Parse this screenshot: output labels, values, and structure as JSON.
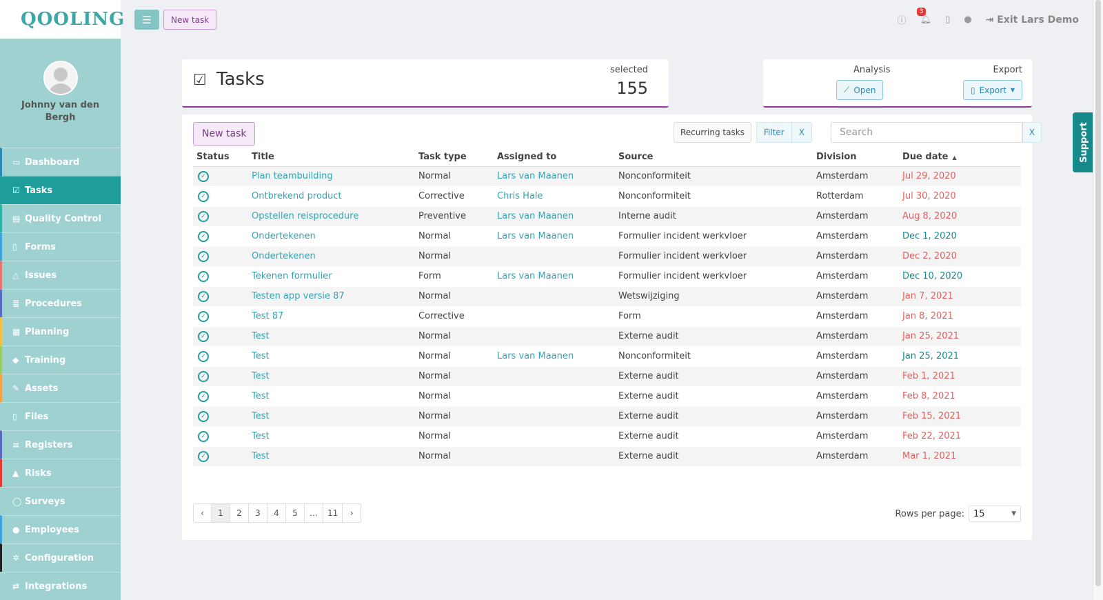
{
  "app": {
    "logo_text": "QOOLING"
  },
  "user": {
    "name": "Johnny van den Bergh"
  },
  "sidebar": {
    "items": [
      {
        "label": "Dashboard",
        "icon": "monitor-icon",
        "glyph": "▭",
        "accent": "#2b8ab0",
        "active": false
      },
      {
        "label": "Tasks",
        "icon": "check-square-icon",
        "glyph": "☑",
        "accent": "#1f9d9d",
        "active": true
      },
      {
        "label": "Quality Control",
        "icon": "book-icon",
        "glyph": "▤",
        "accent": "#2bb0a0",
        "active": false
      },
      {
        "label": "Forms",
        "icon": "file-icon",
        "glyph": "▯",
        "accent": "#3aa3d8",
        "active": false
      },
      {
        "label": "Issues",
        "icon": "bell-icon",
        "glyph": "△",
        "accent": "#e57373",
        "active": false
      },
      {
        "label": "Procedures",
        "icon": "list-icon",
        "glyph": "≣",
        "accent": "#5c6bc0",
        "active": false
      },
      {
        "label": "Planning",
        "icon": "calendar-icon",
        "glyph": "▦",
        "accent": "#f0c040",
        "active": false
      },
      {
        "label": "Training",
        "icon": "graduation-cap-icon",
        "glyph": "◆",
        "accent": "#9ccc65",
        "active": false
      },
      {
        "label": "Assets",
        "icon": "wrench-icon",
        "glyph": "✎",
        "accent": "#f4a340",
        "active": false
      },
      {
        "label": "Files",
        "icon": "document-icon",
        "glyph": "▯",
        "accent": "#9fd1d1",
        "active": false
      },
      {
        "label": "Registers",
        "icon": "bars-icon",
        "glyph": "≡",
        "accent": "#5c6bc0",
        "active": false
      },
      {
        "label": "Risks",
        "icon": "warning-icon",
        "glyph": "▲",
        "accent": "#e53935",
        "active": false
      },
      {
        "label": "Surveys",
        "icon": "comment-icon",
        "glyph": "◯",
        "accent": "#9fd1d1",
        "active": false
      },
      {
        "label": "Employees",
        "icon": "users-icon",
        "glyph": "●",
        "accent": "#3aa3d8",
        "active": false
      },
      {
        "label": "Configuration",
        "icon": "gear-icon",
        "glyph": "✲",
        "accent": "#222222",
        "active": false
      },
      {
        "label": "Integrations",
        "icon": "exchange-icon",
        "glyph": "⇄",
        "accent": "#9fd1d1",
        "active": false
      }
    ]
  },
  "topbar": {
    "new_task_label": "New task",
    "notifications_count": "3",
    "exit_label": "Exit Lars Demo"
  },
  "header": {
    "title": "Tasks",
    "selected_label": "selected",
    "selected_count": "155",
    "analysis_label": "Analysis",
    "analysis_button": "Open",
    "export_label": "Export",
    "export_button": "Export"
  },
  "toolbar": {
    "new_task_label": "New task",
    "recurring_label": "Recurring tasks",
    "filter_label": "Filter",
    "filter_clear": "X",
    "search_placeholder": "Search",
    "search_clear": "X"
  },
  "table": {
    "columns": [
      "Status",
      "Title",
      "Task type",
      "Assigned to",
      "Source",
      "Division",
      "Due date"
    ],
    "rows": [
      {
        "title": "Plan teambuilding",
        "type": "Normal",
        "assigned": "Lars van Maanen",
        "source": "Nonconformiteit",
        "division": "Amsterdam",
        "due": "Jul 29, 2020",
        "overdue": true
      },
      {
        "title": "Ontbrekend product",
        "type": "Corrective",
        "assigned": "Chris Hale",
        "source": "Nonconformiteit",
        "division": "Rotterdam",
        "due": "Jul 30, 2020",
        "overdue": true
      },
      {
        "title": "Opstellen reisprocedure",
        "type": "Preventive",
        "assigned": "Lars van Maanen",
        "source": "Interne audit",
        "division": "Amsterdam",
        "due": "Aug 8, 2020",
        "overdue": true
      },
      {
        "title": "Ondertekenen",
        "type": "Normal",
        "assigned": "Lars van Maanen",
        "source": "Formulier incident werkvloer",
        "division": "Amsterdam",
        "due": "Dec 1, 2020",
        "overdue": false
      },
      {
        "title": "Ondertekenen",
        "type": "Normal",
        "assigned": "",
        "source": "Formulier incident werkvloer",
        "division": "Amsterdam",
        "due": "Dec 2, 2020",
        "overdue": true
      },
      {
        "title": "Tekenen formulier",
        "type": "Form",
        "assigned": "Lars van Maanen",
        "source": "Formulier incident werkvloer",
        "division": "Amsterdam",
        "due": "Dec 10, 2020",
        "overdue": false
      },
      {
        "title": "Testen app versie 87",
        "type": "Normal",
        "assigned": "",
        "source": "Wetswijziging",
        "division": "Amsterdam",
        "due": "Jan 7, 2021",
        "overdue": true
      },
      {
        "title": "Test 87",
        "type": "Corrective",
        "assigned": "",
        "source": "Form",
        "division": "Amsterdam",
        "due": "Jan 8, 2021",
        "overdue": true
      },
      {
        "title": "Test",
        "type": "Normal",
        "assigned": "",
        "source": "Externe audit",
        "division": "Amsterdam",
        "due": "Jan 25, 2021",
        "overdue": true
      },
      {
        "title": "Test",
        "type": "Normal",
        "assigned": "Lars van Maanen",
        "source": "Nonconformiteit",
        "division": "Amsterdam",
        "due": "Jan 25, 2021",
        "overdue": false
      },
      {
        "title": "Test",
        "type": "Normal",
        "assigned": "",
        "source": "Externe audit",
        "division": "Amsterdam",
        "due": "Feb 1, 2021",
        "overdue": true
      },
      {
        "title": "Test",
        "type": "Normal",
        "assigned": "",
        "source": "Externe audit",
        "division": "Amsterdam",
        "due": "Feb 8, 2021",
        "overdue": true
      },
      {
        "title": "Test",
        "type": "Normal",
        "assigned": "",
        "source": "Externe audit",
        "division": "Amsterdam",
        "due": "Feb 15, 2021",
        "overdue": true
      },
      {
        "title": "Test",
        "type": "Normal",
        "assigned": "",
        "source": "Externe audit",
        "division": "Amsterdam",
        "due": "Feb 22, 2021",
        "overdue": true
      },
      {
        "title": "Test",
        "type": "Normal",
        "assigned": "",
        "source": "Externe audit",
        "division": "Amsterdam",
        "due": "Mar 1, 2021",
        "overdue": true
      }
    ]
  },
  "pagination": {
    "prev": "‹",
    "pages": [
      "1",
      "2",
      "3",
      "4",
      "5",
      "…",
      "11"
    ],
    "current": "1",
    "next": "›",
    "rows_per_page_label": "Rows per page:",
    "rows_per_page_value": "15"
  },
  "support": {
    "label": "Support"
  },
  "colors": {
    "brand": "#1f9d9d",
    "sidebar": "#9fd1d1",
    "accent_purple": "#8c3a98",
    "overdue": "#e25f5f",
    "on_time": "#168a8a"
  }
}
